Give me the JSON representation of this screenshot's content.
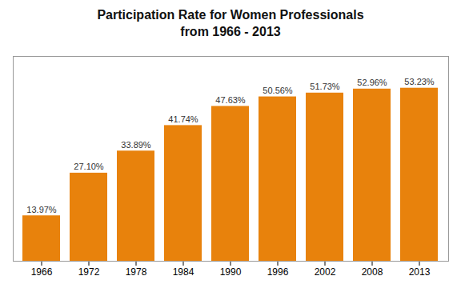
{
  "chart_data": {
    "type": "bar",
    "title": "Participation Rate for Women Professionals",
    "subtitle": "from 1966 - 2013",
    "categories": [
      "1966",
      "1972",
      "1978",
      "1984",
      "1990",
      "1996",
      "2002",
      "2008",
      "2013"
    ],
    "values": [
      13.97,
      27.1,
      33.89,
      41.74,
      47.63,
      50.56,
      51.73,
      52.96,
      53.23
    ],
    "value_labels": [
      "13.97%",
      "27.10%",
      "33.89%",
      "41.74%",
      "47.63%",
      "50.56%",
      "51.73%",
      "52.96%",
      "53.23%"
    ],
    "data_labels": true,
    "color": "#E8820C",
    "ylim": [
      0,
      63
    ],
    "tick_labels": "x"
  }
}
